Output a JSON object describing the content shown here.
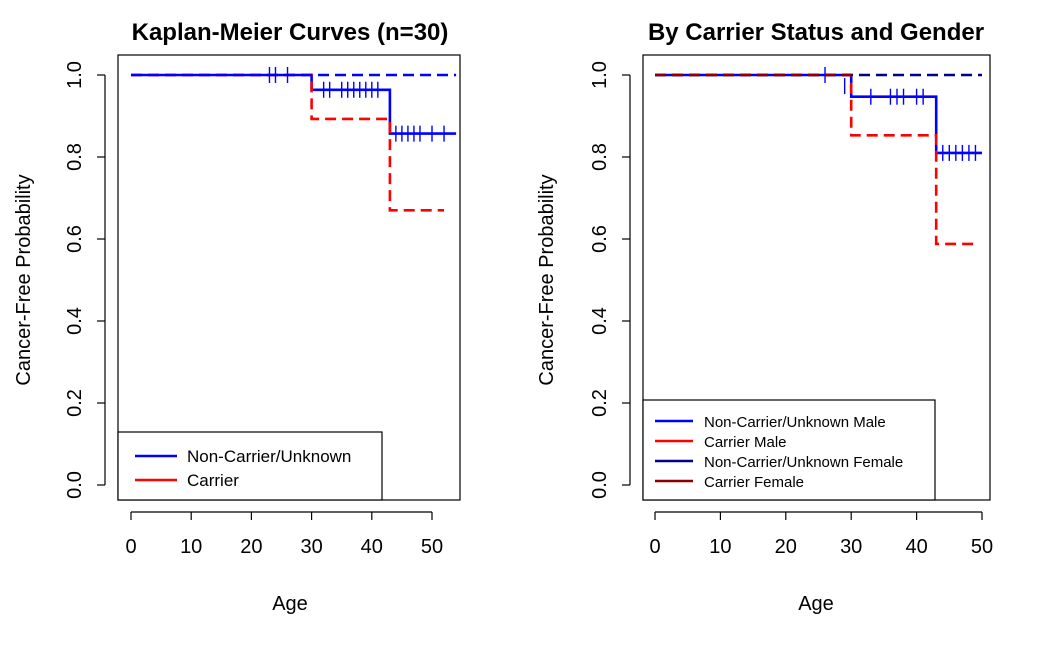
{
  "chart_data": [
    {
      "type": "line",
      "title": "Kaplan-Meier Curves (n=30)",
      "xlabel": "Age",
      "ylabel": "Cancer-Free Probability",
      "xlim": [
        0,
        54
      ],
      "ylim": [
        0,
        1
      ],
      "x_ticks": [
        0,
        10,
        20,
        30,
        40,
        50
      ],
      "y_ticks": [
        0.0,
        0.2,
        0.4,
        0.6,
        0.8,
        1.0
      ],
      "x_tick_labels": [
        "0",
        "10",
        "20",
        "30",
        "40",
        "50"
      ],
      "y_tick_labels": [
        "0.0",
        "0.2",
        "0.4",
        "0.6",
        "0.8",
        "1.0"
      ],
      "legend_position": "bottom-left",
      "series": [
        {
          "name": "Non-Carrier/Unknown",
          "color": "#0000ff",
          "dash": "solid",
          "steps": [
            [
              0,
              1.0
            ],
            [
              30,
              1.0
            ],
            [
              30,
              0.964
            ],
            [
              43,
              0.964
            ],
            [
              43,
              0.857
            ],
            [
              54,
              0.857
            ]
          ],
          "censor": [
            [
              23,
              1.0
            ],
            [
              24,
              1.0
            ],
            [
              26,
              1.0
            ],
            [
              30,
              0.982
            ],
            [
              32,
              0.964
            ],
            [
              33,
              0.964
            ],
            [
              35,
              0.964
            ],
            [
              36,
              0.964
            ],
            [
              37,
              0.964
            ],
            [
              38,
              0.964
            ],
            [
              39,
              0.964
            ],
            [
              40,
              0.964
            ],
            [
              41,
              0.964
            ],
            [
              44,
              0.857
            ],
            [
              45,
              0.857
            ],
            [
              46,
              0.857
            ],
            [
              47,
              0.857
            ],
            [
              48,
              0.857
            ],
            [
              50,
              0.857
            ],
            [
              52,
              0.857
            ]
          ]
        },
        {
          "name": "Carrier",
          "color": "#ff0000",
          "dash": "dashed",
          "steps": [
            [
              0,
              1.0
            ],
            [
              30,
              1.0
            ],
            [
              30,
              0.893
            ],
            [
              43,
              0.893
            ],
            [
              43,
              0.67
            ],
            [
              52,
              0.67
            ]
          ],
          "censor": []
        },
        {
          "name": "",
          "color": "#0000ff",
          "dash": "dashed",
          "steps": [
            [
              0,
              1.0
            ],
            [
              54,
              1.0
            ]
          ],
          "censor": [],
          "in_legend": false
        }
      ]
    },
    {
      "type": "line",
      "title": "By Carrier Status and Gender",
      "xlabel": "Age",
      "ylabel": "Cancer-Free Probability",
      "xlim": [
        0,
        50
      ],
      "ylim": [
        0,
        1
      ],
      "x_ticks": [
        0,
        10,
        20,
        30,
        40,
        50
      ],
      "y_ticks": [
        0.0,
        0.2,
        0.4,
        0.6,
        0.8,
        1.0
      ],
      "x_tick_labels": [
        "0",
        "10",
        "20",
        "30",
        "40",
        "50"
      ],
      "y_tick_labels": [
        "0.0",
        "0.2",
        "0.4",
        "0.6",
        "0.8",
        "1.0"
      ],
      "legend_position": "bottom-left",
      "series": [
        {
          "name": "Non-Carrier/Unknown Male",
          "color": "#0000ff",
          "dash": "solid",
          "steps": [
            [
              0,
              1.0
            ],
            [
              30,
              1.0
            ],
            [
              30,
              0.947
            ],
            [
              43,
              0.947
            ],
            [
              43,
              0.81
            ],
            [
              50,
              0.81
            ]
          ],
          "censor": [
            [
              26,
              1.0
            ],
            [
              29,
              0.973
            ],
            [
              33,
              0.947
            ],
            [
              36,
              0.947
            ],
            [
              37,
              0.947
            ],
            [
              38,
              0.947
            ],
            [
              40,
              0.947
            ],
            [
              41,
              0.947
            ],
            [
              44,
              0.81
            ],
            [
              45,
              0.81
            ],
            [
              46,
              0.81
            ],
            [
              47,
              0.81
            ],
            [
              48,
              0.81
            ],
            [
              49,
              0.81
            ]
          ]
        },
        {
          "name": "Carrier Male",
          "color": "#ff0000",
          "dash": "dashed",
          "steps": [
            [
              0,
              1.0
            ],
            [
              30,
              1.0
            ],
            [
              30,
              0.853
            ],
            [
              43,
              0.853
            ],
            [
              43,
              0.588
            ],
            [
              49,
              0.588
            ]
          ],
          "censor": []
        },
        {
          "name": "Non-Carrier/Unknown Female",
          "color": "#00008b",
          "dash": "dashed",
          "steps": [
            [
              0,
              1.0
            ],
            [
              50,
              1.0
            ]
          ],
          "censor": []
        },
        {
          "name": "Carrier Female",
          "color": "#8b0000",
          "dash": "dashed",
          "steps": [
            [
              0,
              1.0
            ],
            [
              30,
              1.0
            ]
          ],
          "censor": []
        }
      ]
    }
  ]
}
